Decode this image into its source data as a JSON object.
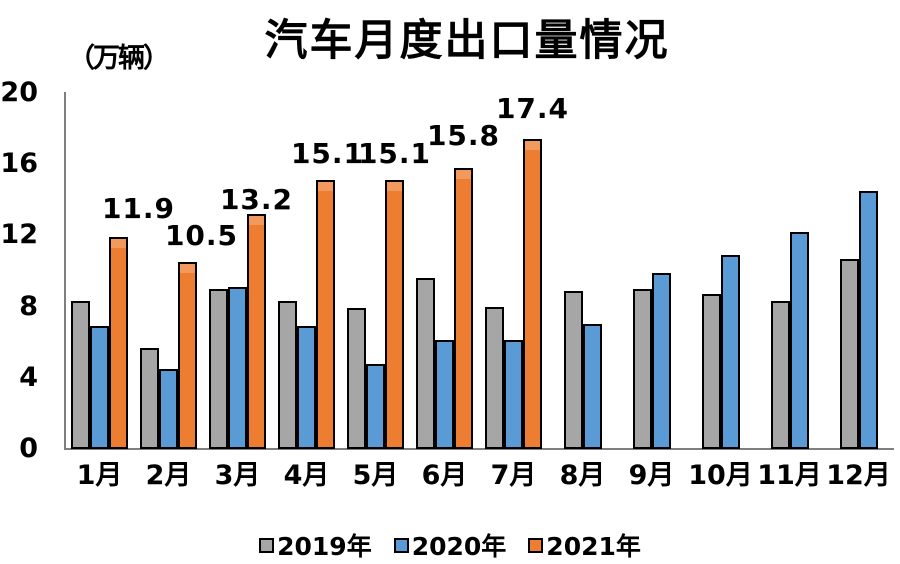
{
  "chart_data": {
    "type": "bar",
    "title": "汽车月度出口量情况",
    "unit_label": "（万辆）",
    "categories": [
      "1月",
      "2月",
      "3月",
      "4月",
      "5月",
      "6月",
      "7月",
      "8月",
      "9月",
      "10月",
      "11月",
      "12月"
    ],
    "series": [
      {
        "name": "2019年",
        "color": "#A6A6A6",
        "values": [
          8.3,
          5.7,
          9.0,
          8.3,
          7.9,
          9.6,
          8.0,
          8.9,
          9.0,
          8.7,
          8.3,
          10.7
        ]
      },
      {
        "name": "2020年",
        "color": "#5B9BD5",
        "values": [
          6.9,
          4.5,
          9.1,
          6.9,
          4.8,
          6.1,
          6.1,
          7.0,
          9.9,
          10.9,
          12.2,
          14.5
        ]
      },
      {
        "name": "2021年",
        "color": "#ED7D31",
        "color_top": "#F29A5E",
        "values": [
          11.9,
          10.5,
          13.2,
          15.1,
          15.1,
          15.8,
          17.4,
          null,
          null,
          null,
          null,
          null
        ],
        "data_labels": [
          "11.9",
          "10.5",
          "13.2",
          "15.1",
          "15.1",
          "15.8",
          "17.4"
        ]
      }
    ],
    "yticks": [
      0,
      4,
      8,
      12,
      16,
      20
    ],
    "ylim": [
      0,
      20
    ],
    "grid": false,
    "legend_position": "bottom",
    "bar_border_color": "#000000",
    "axis_color": "#7F7F7F",
    "text_color": "#000000",
    "background_color": "#FFFFFF"
  }
}
